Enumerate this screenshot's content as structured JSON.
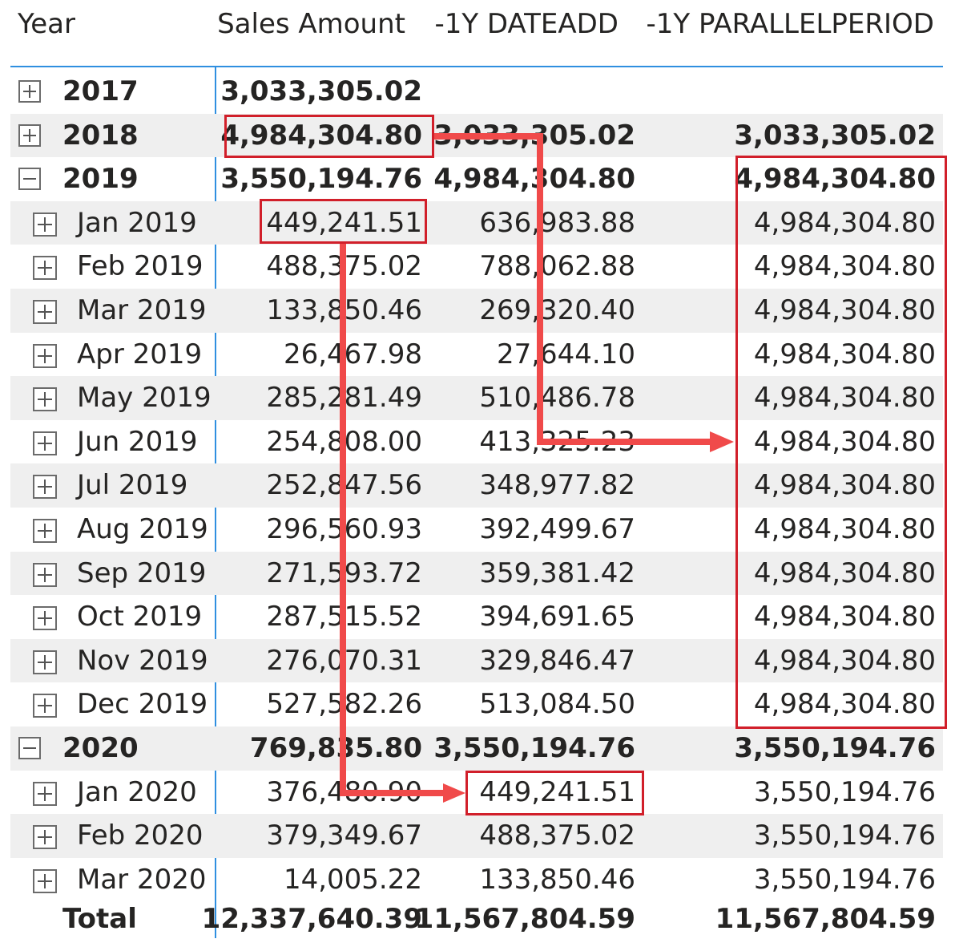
{
  "headers": {
    "year": "Year",
    "sales": "Sales Amount",
    "dateadd": "-1Y DATEADD",
    "parallel": "-1Y PARALLELPERIOD"
  },
  "rows": [
    {
      "label": "2017",
      "level": "year",
      "toggle": "plus",
      "sales": "3,033,305.02",
      "dateadd": "",
      "parallel": ""
    },
    {
      "label": "2018",
      "level": "year",
      "toggle": "plus",
      "sales": "4,984,304.80",
      "dateadd": "3,033,305.02",
      "parallel": "3,033,305.02"
    },
    {
      "label": "2019",
      "level": "year",
      "toggle": "minus",
      "sales": "3,550,194.76",
      "dateadd": "4,984,304.80",
      "parallel": "4,984,304.80"
    },
    {
      "label": "Jan 2019",
      "level": "month",
      "toggle": "plus",
      "sales": "449,241.51",
      "dateadd": "636,983.88",
      "parallel": "4,984,304.80"
    },
    {
      "label": "Feb 2019",
      "level": "month",
      "toggle": "plus",
      "sales": "488,375.02",
      "dateadd": "788,062.88",
      "parallel": "4,984,304.80"
    },
    {
      "label": "Mar 2019",
      "level": "month",
      "toggle": "plus",
      "sales": "133,850.46",
      "dateadd": "269,320.40",
      "parallel": "4,984,304.80"
    },
    {
      "label": "Apr 2019",
      "level": "month",
      "toggle": "plus",
      "sales": "26,467.98",
      "dateadd": "27,644.10",
      "parallel": "4,984,304.80"
    },
    {
      "label": "May 2019",
      "level": "month",
      "toggle": "plus",
      "sales": "285,281.49",
      "dateadd": "510,486.78",
      "parallel": "4,984,304.80"
    },
    {
      "label": "Jun 2019",
      "level": "month",
      "toggle": "plus",
      "sales": "254,808.00",
      "dateadd": "413,325.23",
      "parallel": "4,984,304.80"
    },
    {
      "label": "Jul 2019",
      "level": "month",
      "toggle": "plus",
      "sales": "252,847.56",
      "dateadd": "348,977.82",
      "parallel": "4,984,304.80"
    },
    {
      "label": "Aug 2019",
      "level": "month",
      "toggle": "plus",
      "sales": "296,560.93",
      "dateadd": "392,499.67",
      "parallel": "4,984,304.80"
    },
    {
      "label": "Sep 2019",
      "level": "month",
      "toggle": "plus",
      "sales": "271,593.72",
      "dateadd": "359,381.42",
      "parallel": "4,984,304.80"
    },
    {
      "label": "Oct 2019",
      "level": "month",
      "toggle": "plus",
      "sales": "287,515.52",
      "dateadd": "394,691.65",
      "parallel": "4,984,304.80"
    },
    {
      "label": "Nov 2019",
      "level": "month",
      "toggle": "plus",
      "sales": "276,070.31",
      "dateadd": "329,846.47",
      "parallel": "4,984,304.80"
    },
    {
      "label": "Dec 2019",
      "level": "month",
      "toggle": "plus",
      "sales": "527,582.26",
      "dateadd": "513,084.50",
      "parallel": "4,984,304.80"
    },
    {
      "label": "2020",
      "level": "year",
      "toggle": "minus",
      "sales": "769,835.80",
      "dateadd": "3,550,194.76",
      "parallel": "3,550,194.76"
    },
    {
      "label": "Jan 2020",
      "level": "month",
      "toggle": "plus",
      "sales": "376,480.90",
      "dateadd": "449,241.51",
      "parallel": "3,550,194.76"
    },
    {
      "label": "Feb 2020",
      "level": "month",
      "toggle": "plus",
      "sales": "379,349.67",
      "dateadd": "488,375.02",
      "parallel": "3,550,194.76"
    },
    {
      "label": "Mar 2020",
      "level": "month",
      "toggle": "plus",
      "sales": "14,005.22",
      "dateadd": "133,850.46",
      "parallel": "3,550,194.76"
    }
  ],
  "total": {
    "label": "Total",
    "sales": "12,337,640.39",
    "dateadd": "11,567,804.59",
    "parallel": "11,567,804.59"
  },
  "colors": {
    "accent_line": "#2f8fe0",
    "row_shade": "#efefef",
    "highlight_box": "#d11f2a",
    "arrow": "#f04a4a"
  }
}
